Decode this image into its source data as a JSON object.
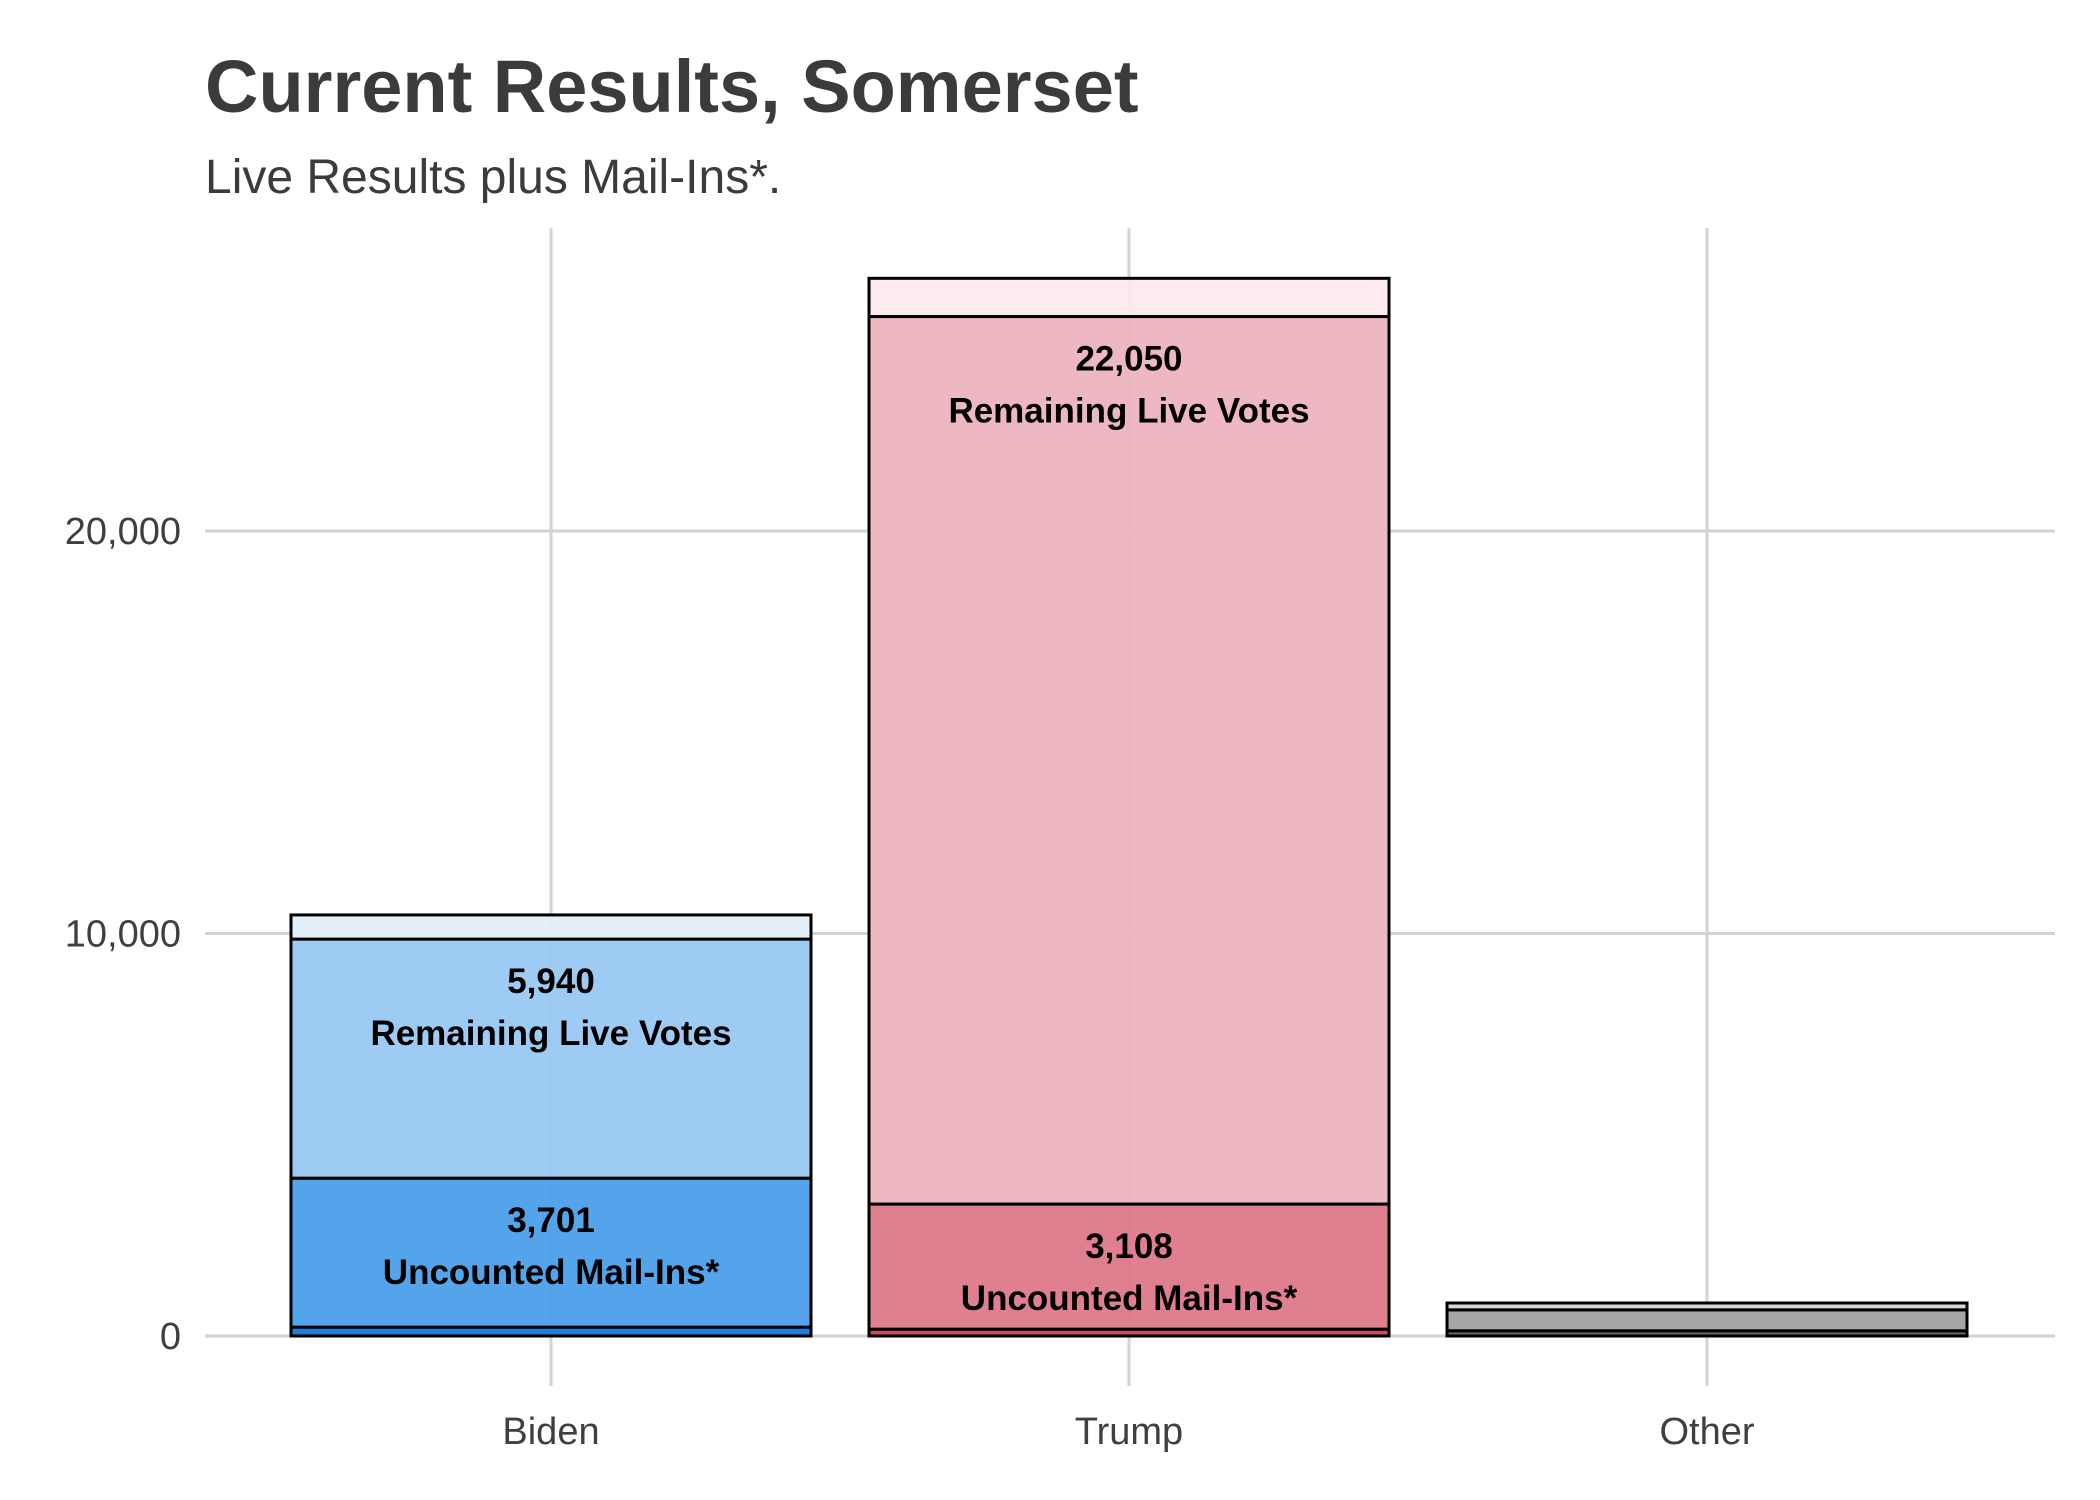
{
  "chart_data": {
    "type": "bar",
    "stacked": true,
    "title": "Current Results, Somerset",
    "subtitle": "Live Results plus Mail-Ins*.",
    "xlabel": "",
    "ylabel": "",
    "ylim": [
      0,
      27500
    ],
    "grid": true,
    "legend": "none",
    "categories": [
      "Biden",
      "Trump",
      "Other"
    ],
    "y_ticks": [
      {
        "value": 0,
        "label": "0"
      },
      {
        "value": 10000,
        "label": "10,000"
      },
      {
        "value": 20000,
        "label": "20,000"
      }
    ],
    "bars": [
      {
        "category": "Biden",
        "segments": [
          {
            "value": 220,
            "color": "#1874d8"
          },
          {
            "value": 3701,
            "color": "#4a9fea",
            "number": "3,701",
            "text": "Uncounted Mail-Ins*"
          },
          {
            "value": 5940,
            "color": "#99c8f2",
            "number": "5,940",
            "text": "Remaining Live Votes"
          },
          {
            "value": 600,
            "color": "#e3eff9"
          }
        ]
      },
      {
        "category": "Trump",
        "segments": [
          {
            "value": 170,
            "color": "#c64558"
          },
          {
            "value": 3108,
            "color": "#de7889",
            "number": "3,108",
            "text": "Uncounted Mail-Ins*"
          },
          {
            "value": 22050,
            "color": "#ecb4be",
            "number": "22,050",
            "text": "Remaining Live Votes"
          },
          {
            "value": 950,
            "color": "#fbe9ed"
          }
        ]
      },
      {
        "category": "Other",
        "segments": [
          {
            "value": 130,
            "color": "#5e5e5e"
          },
          {
            "value": 520,
            "color": "#a1a1a1"
          },
          {
            "value": 170,
            "color": "#d6d6d6"
          }
        ]
      }
    ]
  }
}
